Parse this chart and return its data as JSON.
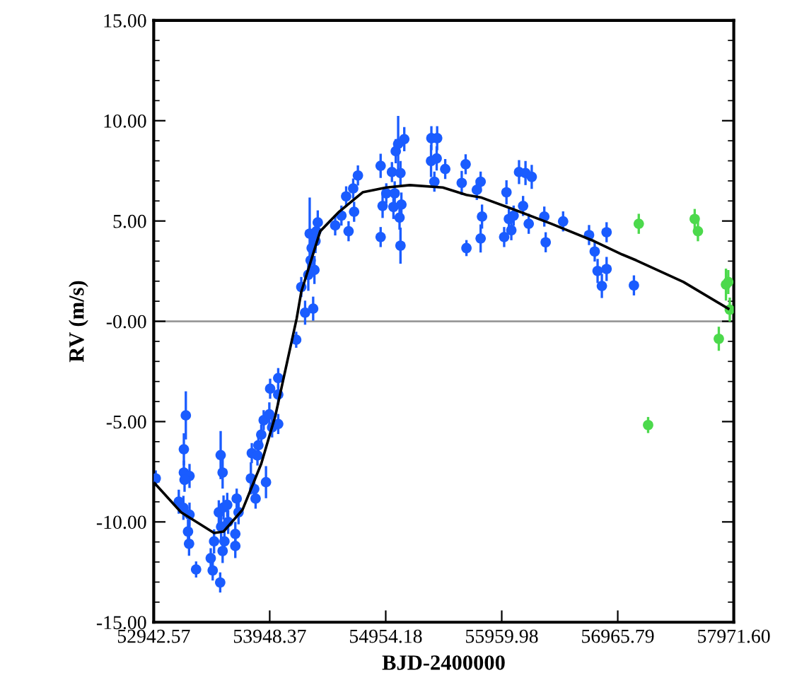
{
  "chart_data": {
    "type": "scatter",
    "xlabel": "BJD-2400000",
    "ylabel": "RV (m/s)",
    "xlim": [
      52942.57,
      57971.6
    ],
    "xticks": [
      52942.57,
      53948.37,
      54954.18,
      55959.98,
      56965.79,
      {
        "value": 57971.6,
        "label": "57971.60"
      }
    ],
    "ylim": [
      -15,
      15
    ],
    "yticks": [
      {
        "value": 15,
        "label": "15.00"
      },
      {
        "value": 10,
        "label": "10.00"
      },
      {
        "value": 5,
        "label": "5.00"
      },
      {
        "value": 0,
        "label": "-0.00"
      },
      {
        "value": -5,
        "label": "-5.00"
      },
      {
        "value": -10,
        "label": "-10.00"
      },
      {
        "value": -15,
        "label": "-15.00"
      }
    ],
    "grid": false,
    "legend": false,
    "marker": "circle",
    "ref_lines": [
      {
        "axis": "y",
        "value": 0,
        "color": "#999999"
      }
    ],
    "series": [
      {
        "color": "#1a5cff",
        "x": [
          52960,
          53160,
          53200,
          53253,
          53221,
          53204,
          53204,
          53253,
          53210,
          53240,
          53249,
          53310,
          53437,
          53454,
          53519,
          53523,
          53540,
          53507,
          53548,
          53580,
          53527,
          53466,
          53556,
          53540,
          53588,
          53650,
          53650,
          53662,
          53678,
          53793,
          53785,
          53826,
          53814,
          53842,
          53850,
          53875,
          53896,
          53945,
          53916,
          53969,
          54022,
          54022,
          53952,
          54022,
          54178,
          54222,
          54255,
          54325,
          54283,
          54303,
          54336,
          54312,
          54295,
          54353,
          54365,
          54345,
          54516,
          54570,
          54632,
          54611,
          54672,
          54713,
          54680,
          54910,
          54910,
          54927,
          54959,
          55008,
          55041,
          55115,
          55062,
          55082,
          55021,
          55090,
          55074,
          55082,
          55032,
          55350,
          55400,
          55347,
          55396,
          55470,
          55376,
          55613,
          55647,
          55777,
          55744,
          55789,
          55654,
          55777,
          56001,
          56110,
          56166,
          56220,
          56145,
          56022,
          56063,
          56043,
          55981,
          56194,
          56329,
          56341,
          56492,
          56717,
          56869,
          56766,
          56791,
          56869,
          56828,
          57106
        ],
        "values": [
          -7.83,
          -8.99,
          -9.3,
          -9.64,
          -4.69,
          -6.38,
          -7.54,
          -7.71,
          -7.9,
          -10.48,
          -11.09,
          -12.37,
          -11.81,
          -12.42,
          -13.02,
          -6.67,
          -7.54,
          -9.52,
          -9.28,
          -9.15,
          -10.24,
          -10.97,
          -10.97,
          -11.45,
          -10.0,
          -10.6,
          -11.2,
          -8.84,
          -9.52,
          -6.57,
          -7.83,
          -8.84,
          -8.36,
          -6.69,
          -6.18,
          -5.65,
          -4.93,
          -4.64,
          -8.02,
          -5.29,
          -5.12,
          -3.65,
          -3.36,
          -2.83,
          -0.92,
          1.71,
          0.43,
          0.63,
          2.32,
          3.04,
          2.56,
          3.65,
          4.37,
          4.49,
          4.93,
          4.0,
          4.78,
          5.27,
          4.49,
          6.23,
          6.62,
          7.27,
          5.46,
          7.75,
          4.2,
          5.75,
          6.38,
          7.44,
          8.48,
          9.08,
          8.84,
          7.39,
          5.7,
          5.82,
          5.17,
          3.77,
          6.38,
          9.13,
          9.13,
          7.99,
          8.12,
          7.59,
          6.96,
          6.9,
          7.83,
          6.96,
          6.55,
          5.22,
          3.65,
          4.13,
          6.43,
          7.44,
          7.39,
          7.2,
          5.75,
          5.1,
          5.27,
          4.54,
          4.2,
          4.86,
          5.22,
          3.94,
          4.98,
          4.3,
          4.44,
          3.48,
          2.51,
          2.61,
          1.76,
          1.79
        ],
        "errors": [
          0.4,
          0.6,
          0.6,
          0.6,
          1.2,
          0.8,
          0.6,
          0.6,
          0.6,
          0.6,
          0.6,
          0.4,
          0.5,
          0.5,
          0.5,
          1.2,
          0.8,
          0.6,
          0.6,
          0.6,
          0.6,
          0.6,
          0.6,
          0.6,
          0.6,
          0.6,
          0.6,
          0.5,
          0.6,
          0.5,
          0.8,
          0.5,
          0.6,
          0.5,
          0.5,
          0.5,
          0.5,
          0.6,
          0.8,
          0.5,
          0.5,
          0.5,
          0.5,
          0.5,
          0.4,
          0.5,
          0.6,
          0.6,
          0.8,
          0.8,
          0.7,
          0.7,
          1.8,
          0.6,
          0.6,
          0.6,
          0.5,
          0.5,
          0.5,
          0.5,
          0.5,
          0.5,
          0.5,
          0.6,
          0.5,
          0.6,
          0.5,
          0.5,
          0.6,
          0.6,
          1.4,
          0.6,
          0.6,
          0.6,
          0.6,
          0.9,
          0.6,
          0.6,
          0.6,
          0.8,
          0.6,
          0.5,
          0.5,
          0.6,
          0.5,
          0.5,
          0.5,
          0.6,
          0.4,
          0.7,
          0.6,
          0.6,
          0.6,
          0.6,
          0.5,
          0.6,
          0.5,
          0.5,
          0.5,
          0.5,
          0.5,
          0.5,
          0.5,
          0.5,
          0.5,
          0.5,
          0.6,
          0.6,
          0.6,
          0.5
        ]
      },
      {
        "color": "#4cd94c",
        "x": [
          57148,
          57633,
          57661,
          57924,
          57904,
          57937,
          57842,
          57229
        ],
        "values": [
          4.86,
          5.1,
          4.49,
          1.96,
          1.83,
          0.58,
          -0.87,
          -5.17
        ],
        "errors": [
          0.5,
          0.5,
          0.5,
          0.6,
          0.8,
          0.6,
          0.6,
          0.4
        ]
      },
      {
        "type": "line",
        "color": "#000000",
        "marker": "none",
        "x": [
          52950,
          53180,
          53466,
          53548,
          53712,
          53875,
          53998,
          54182,
          54222,
          54386,
          54550,
          54754,
          54959,
          55163,
          55449,
          55654,
          55777,
          56063,
          56391,
          56759,
          57004,
          57126,
          57535,
          57924
        ],
        "values": [
          -8.07,
          -9.52,
          -10.55,
          -10.48,
          -9.4,
          -7.1,
          -4.69,
          0.14,
          1.47,
          4.49,
          5.46,
          6.43,
          6.67,
          6.79,
          6.67,
          6.3,
          6.18,
          5.58,
          4.86,
          4.0,
          3.33,
          3.04,
          1.96,
          0.63
        ]
      }
    ]
  }
}
